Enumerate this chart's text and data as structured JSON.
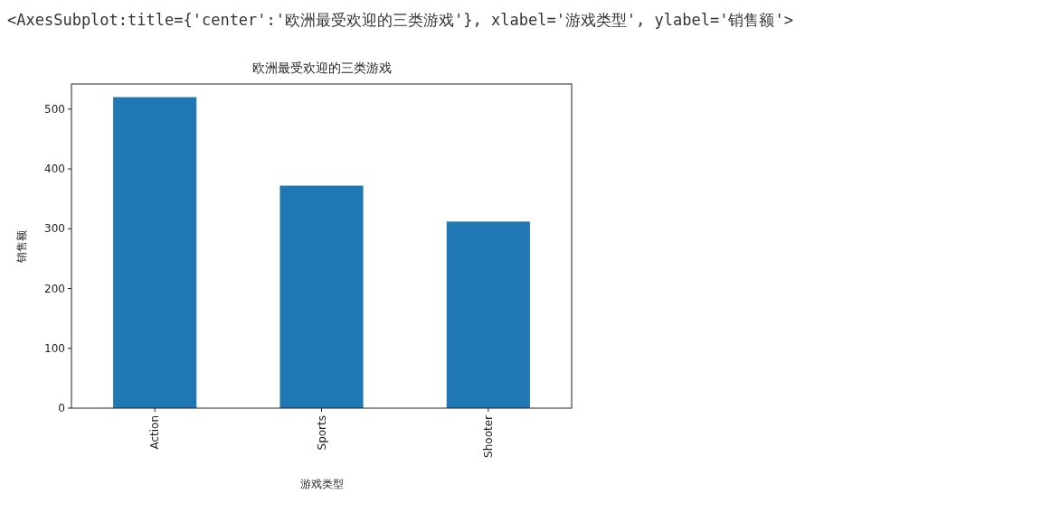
{
  "chart_data": {
    "type": "bar",
    "title": "欧洲最受欢迎的三类游戏",
    "xlabel": "游戏类型",
    "ylabel": "销售额",
    "categories": [
      "Action",
      "Sports",
      "Shooter"
    ],
    "values": [
      520,
      372,
      312
    ],
    "color": "#1f77b4",
    "ylim": [
      0,
      542
    ],
    "yticks": [
      0,
      100,
      200,
      300,
      400,
      500
    ],
    "grid": false,
    "annotations": [
      "<AxesSubplot:title={'center':'欧洲最受欢迎的三类游戏'}, xlabel='游戏类型', ylabel='销售额'>"
    ]
  }
}
